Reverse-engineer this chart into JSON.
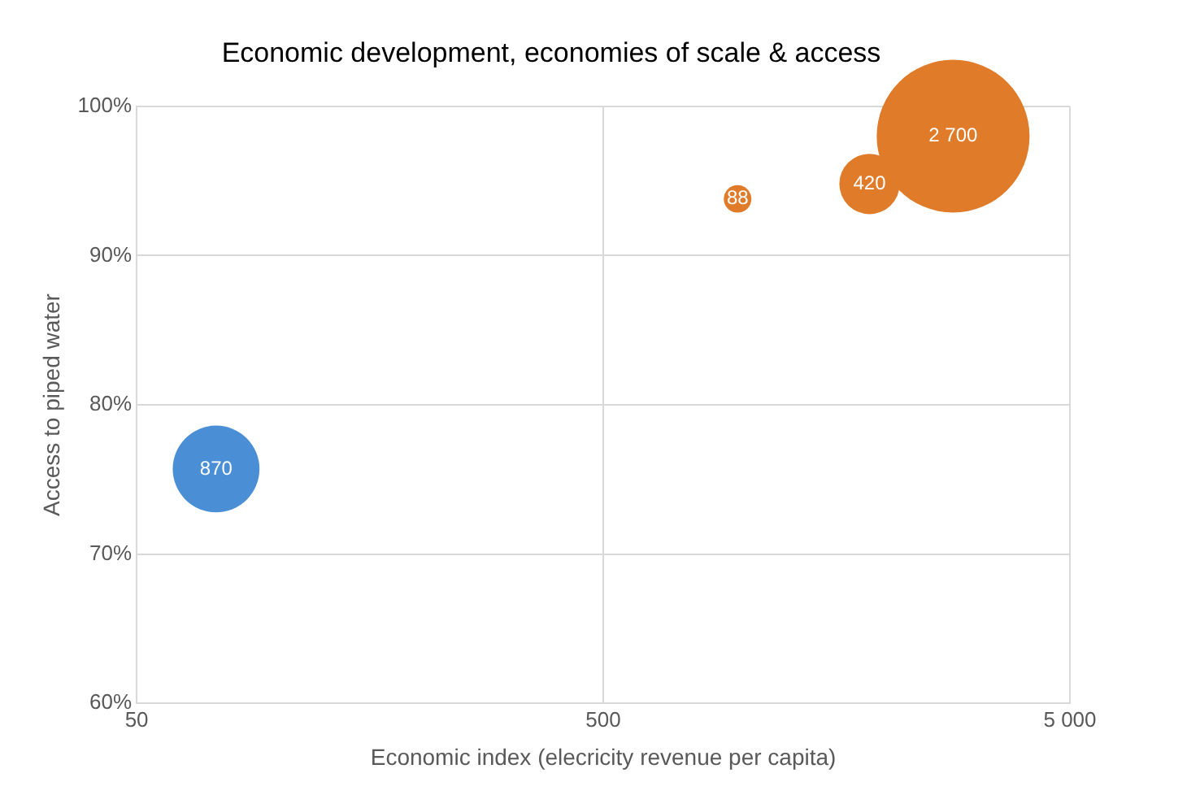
{
  "chart_data": {
    "type": "bubble",
    "title": "Economic development, economies of scale & access",
    "xlabel": "Economic index (elecricity revenue per capita)",
    "ylabel": "Access to piped water",
    "x": [
      74,
      970,
      1860,
      2810
    ],
    "values": [
      75.7,
      93.8,
      94.8,
      98
    ],
    "sizes": [
      0.322,
      0.0326,
      0.156,
      1
    ],
    "annotations": [
      {
        "text": "870",
        "x": 74,
        "y": 75.7
      },
      {
        "text": "88",
        "x": 970,
        "y": 93.8
      },
      {
        "text": "420",
        "x": 1860,
        "y": 94.8
      },
      {
        "text": "2 700",
        "x": 2810,
        "y": 98
      }
    ],
    "colors": [
      "#4a8fd6",
      "#e07b2a",
      "#e07b2a",
      "#e07b2a"
    ],
    "log": "x",
    "xlim": [
      50,
      5000
    ],
    "xticks": [
      50,
      500,
      {
        "value": 5000,
        "label": "5 000"
      }
    ],
    "ylim": [
      60,
      100
    ],
    "yticks": [
      {
        "value": 60,
        "label": "60%"
      },
      {
        "value": 70,
        "label": "70%"
      },
      {
        "value": 80,
        "label": "80%"
      },
      {
        "value": 90,
        "label": "90%"
      },
      {
        "value": 100,
        "label": "100%"
      }
    ],
    "grid": true,
    "legend": false
  }
}
